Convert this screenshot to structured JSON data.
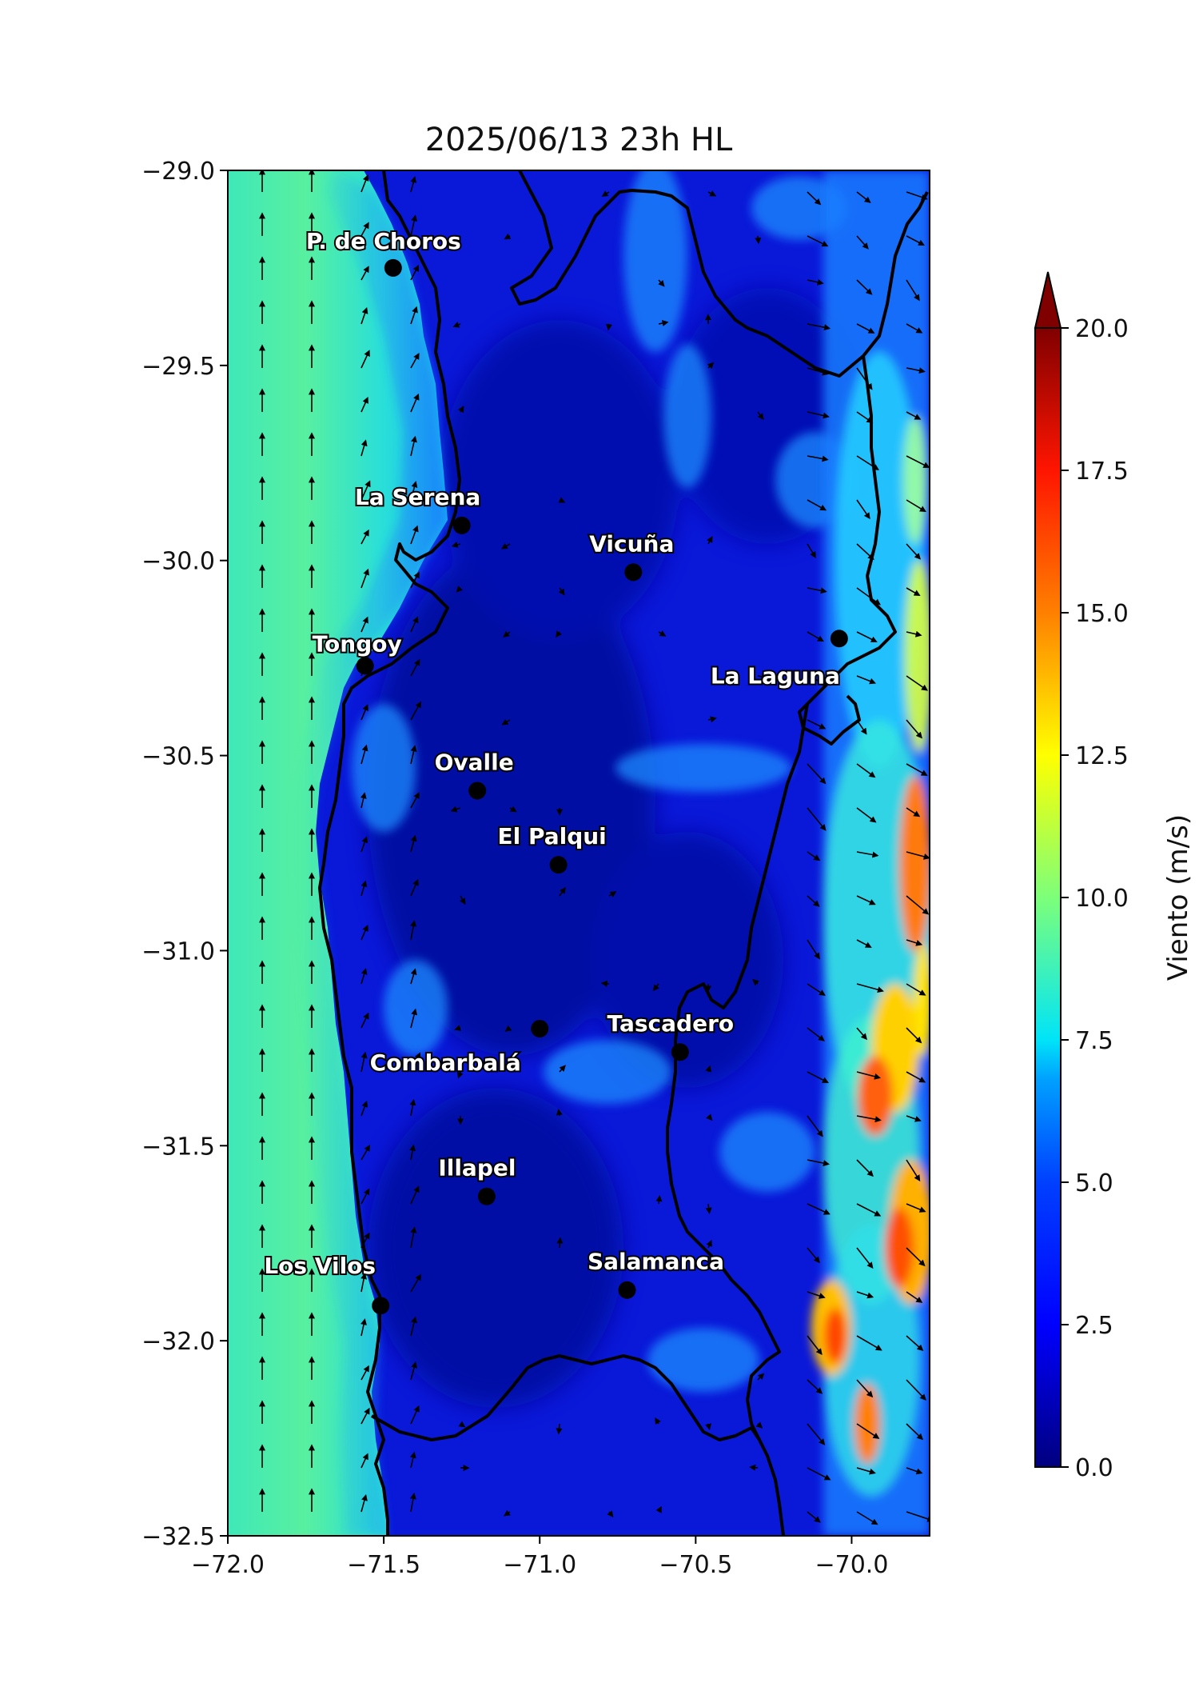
{
  "title": "2025/06/13 23h HL",
  "map": {
    "x_ticks": [
      {
        "value": -72.0,
        "label": "−72.0"
      },
      {
        "value": -71.5,
        "label": "−71.5"
      },
      {
        "value": -71.0,
        "label": "−71.0"
      },
      {
        "value": -70.5,
        "label": "−70.5"
      },
      {
        "value": -70.0,
        "label": "−70.0"
      }
    ],
    "y_ticks": [
      {
        "value": -29.0,
        "label": "−29.0"
      },
      {
        "value": -29.5,
        "label": "−29.5"
      },
      {
        "value": -30.0,
        "label": "−30.0"
      },
      {
        "value": -30.5,
        "label": "−30.5"
      },
      {
        "value": -31.0,
        "label": "−31.0"
      },
      {
        "value": -31.5,
        "label": "−31.5"
      },
      {
        "value": -32.0,
        "label": "−32.0"
      },
      {
        "value": -32.5,
        "label": "−32.5"
      }
    ],
    "lon_range": [
      -72.0,
      -69.75
    ],
    "lat_range": [
      -32.5,
      -29.0
    ],
    "cities": [
      {
        "name": "P. de Choros",
        "lon": -71.47,
        "lat": -29.25
      },
      {
        "name": "La Serena",
        "lon": -71.25,
        "lat": -29.91
      },
      {
        "name": "Vicuña",
        "lon": -70.7,
        "lat": -30.03
      },
      {
        "name": "Tongoy",
        "lon": -71.56,
        "lat": -30.27
      },
      {
        "name": "La Laguna",
        "lon": -70.04,
        "lat": -30.2
      },
      {
        "name": "Ovalle",
        "lon": -71.2,
        "lat": -30.59
      },
      {
        "name": "El Palqui",
        "lon": -70.94,
        "lat": -30.78
      },
      {
        "name": "Combarbalá",
        "lon": -71.0,
        "lat": -31.2
      },
      {
        "name": "Tascadero",
        "lon": -70.55,
        "lat": -31.26
      },
      {
        "name": "Illapel",
        "lon": -71.17,
        "lat": -31.63
      },
      {
        "name": "Los Vilos",
        "lon": -71.51,
        "lat": -31.91
      },
      {
        "name": "Salamanca",
        "lon": -70.72,
        "lat": -31.87
      }
    ]
  },
  "colorbar": {
    "label": "Viento (m/s)",
    "range": [
      0,
      20
    ],
    "ticks": [
      {
        "value": 0,
        "label": "0.0"
      },
      {
        "value": 2.5,
        "label": "2.5"
      },
      {
        "value": 5,
        "label": "5.0"
      },
      {
        "value": 7.5,
        "label": "7.5"
      },
      {
        "value": 10,
        "label": "10.0"
      },
      {
        "value": 12.5,
        "label": "12.5"
      },
      {
        "value": 15,
        "label": "15.0"
      },
      {
        "value": 17.5,
        "label": "17.5"
      },
      {
        "value": 20,
        "label": "20.0"
      }
    ],
    "colors": [
      "#00007f",
      "#0000ff",
      "#007fff",
      "#00ffff",
      "#7fff7f",
      "#ffff00",
      "#ff7f00",
      "#ff0000",
      "#7f0000"
    ]
  }
}
